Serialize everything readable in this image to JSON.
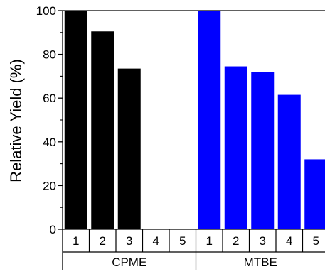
{
  "chart_data": {
    "type": "bar",
    "ylabel": "Relative Yield (%)",
    "ylim": [
      0,
      100
    ],
    "yticks": [
      "0",
      "20",
      "40",
      "60",
      "80",
      "100"
    ],
    "grid": false,
    "groups": [
      {
        "name": "CPME",
        "color": "#000000",
        "categories": [
          "1",
          "2",
          "3",
          "4",
          "5"
        ],
        "values": [
          100,
          90.5,
          73.5,
          0,
          0
        ]
      },
      {
        "name": "MTBE",
        "color": "#0000ff",
        "categories": [
          "1",
          "2",
          "3",
          "4",
          "5"
        ],
        "values": [
          100,
          74.5,
          72,
          61.5,
          32
        ]
      }
    ]
  }
}
